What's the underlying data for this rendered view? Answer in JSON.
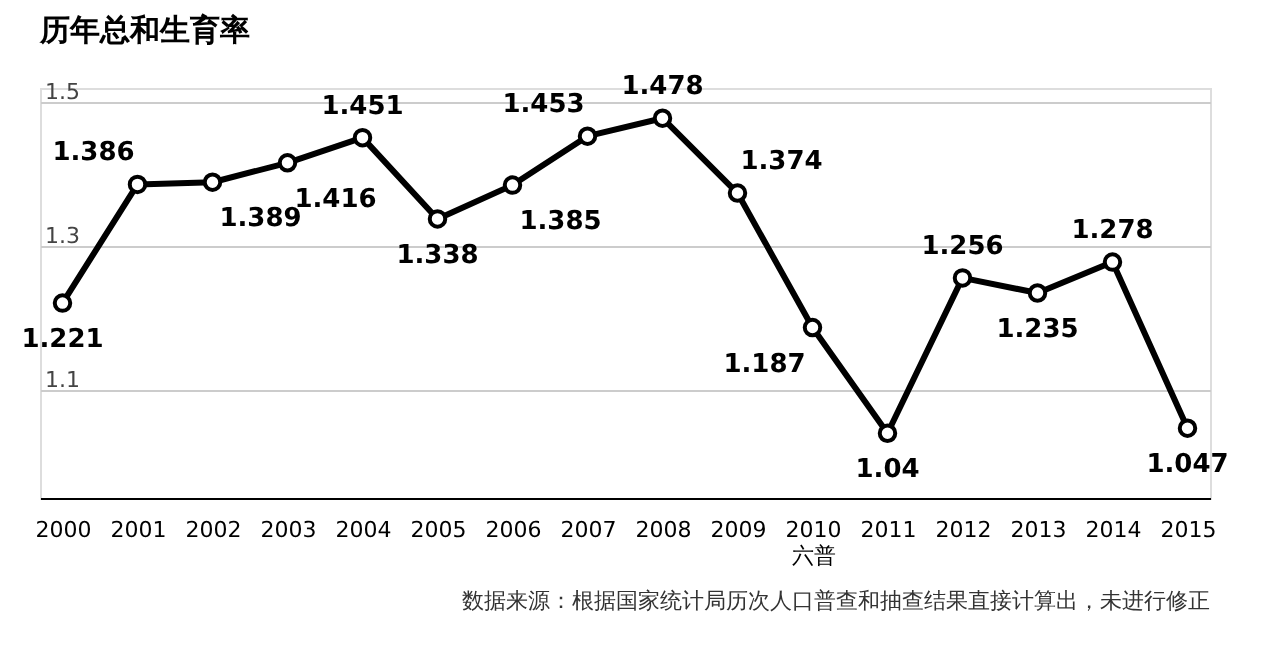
{
  "chart_data": {
    "type": "line",
    "title": "历年总和生育率",
    "categories": [
      "2000",
      "2001",
      "2002",
      "2003",
      "2004",
      "2005",
      "2006",
      "2007",
      "2008",
      "2009",
      "2010\n六普",
      "2011",
      "2012",
      "2013",
      "2014",
      "2015"
    ],
    "values": [
      1.221,
      1.386,
      1.389,
      1.416,
      1.451,
      1.338,
      1.385,
      1.453,
      1.478,
      1.374,
      1.187,
      1.04,
      1.256,
      1.235,
      1.278,
      1.047
    ],
    "color": "#000000",
    "marker": "circle",
    "line_style": "solid",
    "data_labels": true,
    "ylim": [
      0.95,
      1.52
    ],
    "yticks": [
      1.1,
      1.3,
      1.5
    ],
    "grid": "y",
    "annotations": [
      "数据来源：根据国家统计局历次人口普查和抽查结果直接计算出，未进行修正"
    ]
  }
}
